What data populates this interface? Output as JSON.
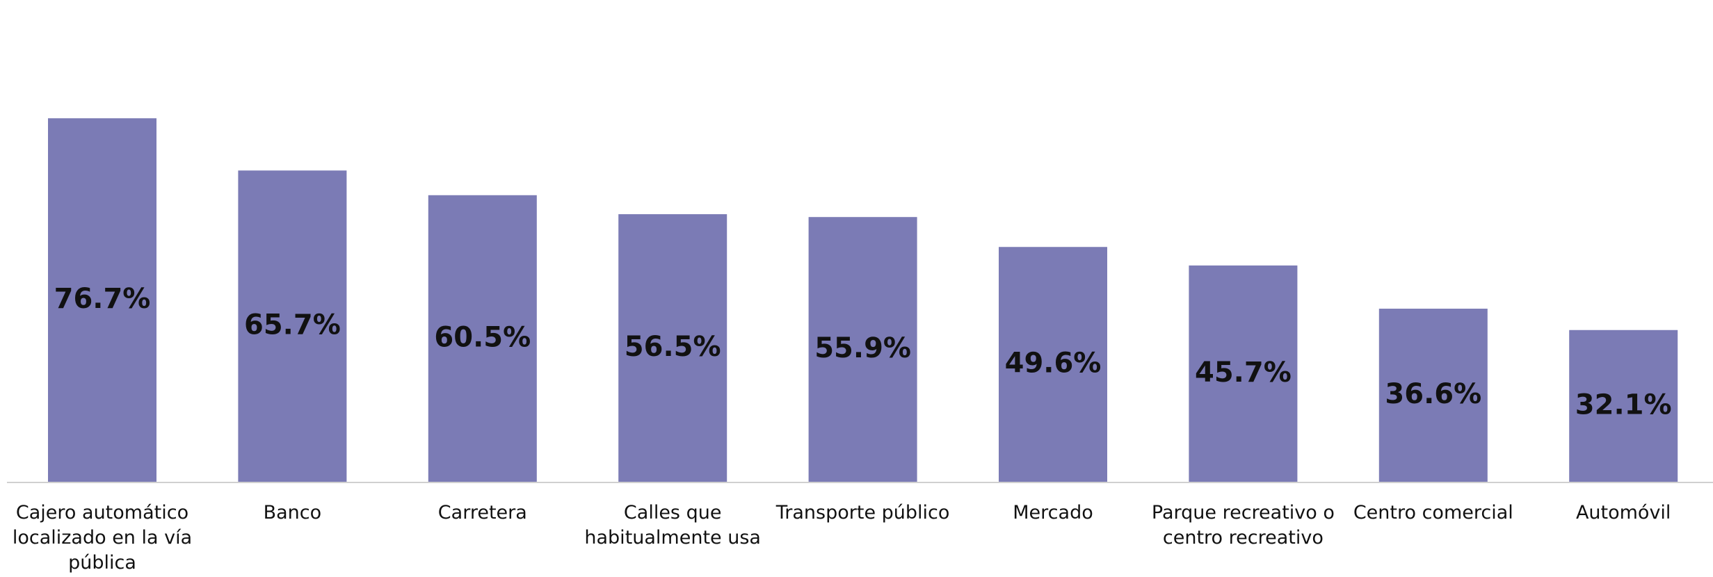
{
  "chart_data": {
    "type": "bar",
    "categories": [
      "Cajero automático localizado en la vía pública",
      "Banco",
      "Carretera",
      "Calles que habitualmente usa",
      "Transporte público",
      "Mercado",
      "Parque recreativo o centro recreativo",
      "Centro comercial",
      "Automóvil"
    ],
    "values": [
      76.7,
      65.7,
      60.5,
      56.5,
      55.9,
      49.6,
      45.7,
      36.6,
      32.1
    ],
    "value_labels": [
      "76.7%",
      "65.7%",
      "60.5%",
      "56.5%",
      "55.9%",
      "49.6%",
      "45.7%",
      "36.6%",
      "32.1%"
    ],
    "color": "#7b7bb5",
    "ylim": [
      0,
      100
    ]
  }
}
